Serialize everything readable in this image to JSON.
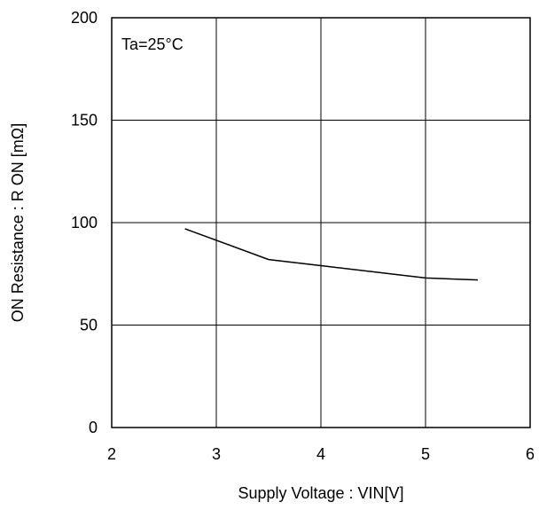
{
  "chart_data": {
    "type": "line",
    "xlabel": "Supply Voltage : VIN[V]",
    "ylabel": "ON Resistance : R ON [mΩ]",
    "xlim": [
      2,
      6
    ],
    "ylim": [
      0,
      200
    ],
    "xticks": [
      2,
      3,
      4,
      5,
      6
    ],
    "yticks": [
      0,
      50,
      100,
      150,
      200
    ],
    "grid": true,
    "annotation": "Ta=25°C",
    "series": [
      {
        "x": [
          2.7,
          3.5,
          4.0,
          5.0,
          5.5
        ],
        "y": [
          97,
          82,
          79,
          73,
          72
        ]
      }
    ]
  }
}
